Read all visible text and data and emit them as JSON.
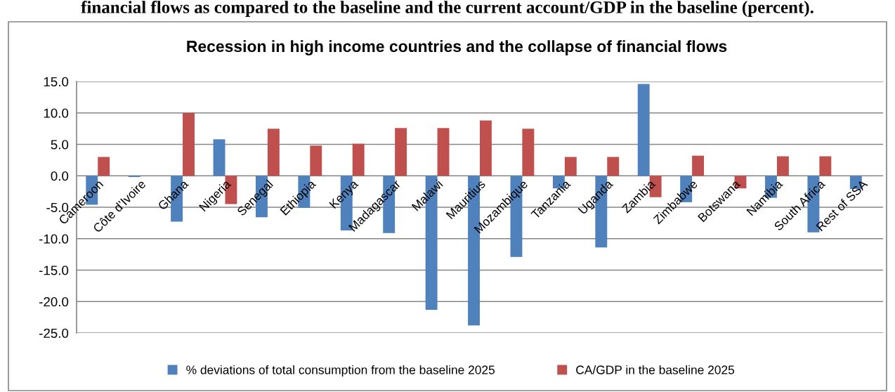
{
  "chart_data": {
    "type": "bar",
    "title": "Recession in high income countries and the collapse of financial flows",
    "annotations": [
      "financial flows as compared to the baseline and the current account/GDP in the baseline (percent)."
    ],
    "categories": [
      "Cameroon",
      "Côte d’Ivoire",
      "Ghana",
      "Nigeria",
      "Senegal",
      "Ethiopia",
      "Kenya",
      "Madagascar",
      "Malawi",
      "Mauritius",
      "Mozambique",
      "Tanzania",
      "Uganda",
      "Zambia",
      "Zimbabwe",
      "Botswana",
      "Namibia",
      "South Africa",
      "Rest of SSA"
    ],
    "series": [
      {
        "name": "% deviations of total consumption from the baseline 2025",
        "color": "#4f81bd",
        "values": [
          -4.6,
          -0.2,
          -7.3,
          5.8,
          -6.6,
          -5.1,
          -8.7,
          -9.1,
          -21.3,
          -23.8,
          -12.9,
          -2.0,
          -11.4,
          14.6,
          -4.2,
          null,
          -3.5,
          -9.0,
          -2.1
        ]
      },
      {
        "name": "CA/GDP in the baseline 2025",
        "color": "#c0504d",
        "values": [
          3.0,
          null,
          10.0,
          -4.5,
          7.5,
          4.8,
          5.1,
          7.6,
          7.6,
          8.8,
          7.5,
          3.0,
          3.0,
          -3.4,
          3.2,
          -2.0,
          3.1,
          3.1,
          null
        ]
      }
    ],
    "ylim": [
      -25,
      15
    ],
    "yticks": [
      {
        "value": -25,
        "label": "-25.0"
      },
      {
        "value": -20,
        "label": "-20.0"
      },
      {
        "value": -15,
        "label": "-15.0"
      },
      {
        "value": -10,
        "label": "-10.0"
      },
      {
        "value": -5,
        "label": "-5.0"
      },
      {
        "value": 0,
        "label": "0.0"
      },
      {
        "value": 5,
        "label": "5.0"
      },
      {
        "value": 10,
        "label": "10.0"
      },
      {
        "value": 15,
        "label": "15.0"
      }
    ],
    "grid": "y",
    "legend": "bottom"
  }
}
